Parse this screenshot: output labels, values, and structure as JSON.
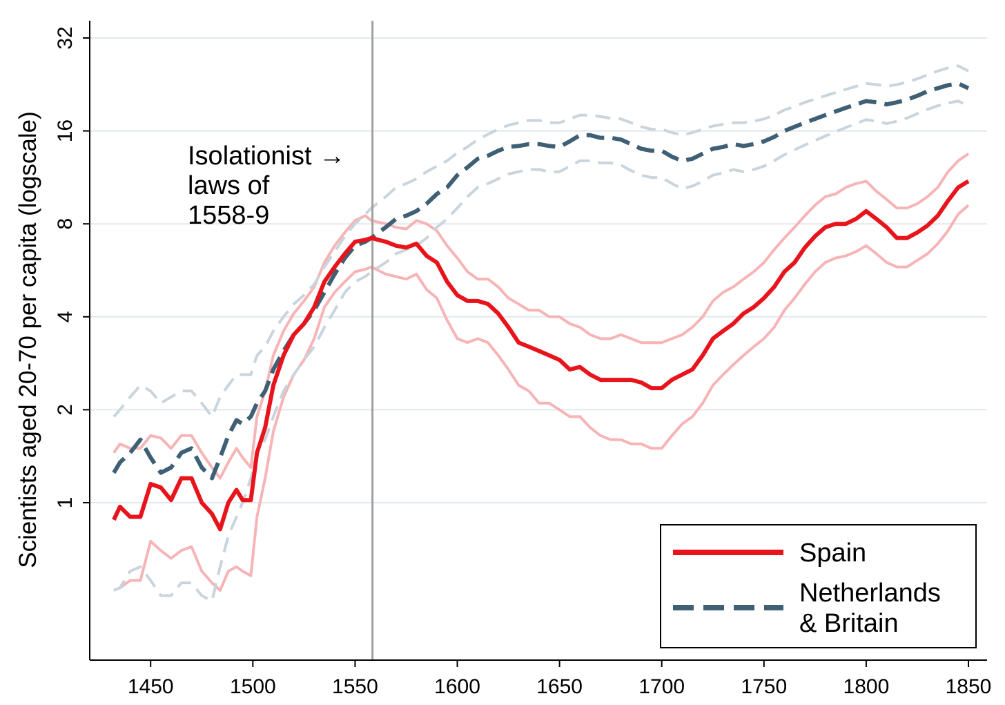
{
  "chart_data": {
    "type": "line",
    "title": "",
    "xlabel": "",
    "ylabel": "Scientists aged 20-70 per capita (logscale)",
    "y_scale": "log2",
    "xlim": [
      1430,
      1856
    ],
    "ylim": [
      0.4,
      40
    ],
    "x_ticks": [
      1450,
      1500,
      1550,
      1600,
      1650,
      1700,
      1750,
      1800,
      1850
    ],
    "x_tick_labels": [
      "1450",
      "1500",
      "1550",
      "1600",
      "1650",
      "1700",
      "1750",
      "1800",
      "1850"
    ],
    "y_ticks": [
      1,
      2,
      4,
      8,
      16,
      32
    ],
    "y_tick_labels": [
      "1",
      "2",
      "4",
      "8",
      "16",
      "32"
    ],
    "grid": "horizontal",
    "legend_position": "bottom-right",
    "vertical_line": {
      "x": 1558.5,
      "color": "#a0a0a0"
    },
    "annotation": {
      "lines": [
        "Isolationist →",
        "laws of",
        "1558-9"
      ]
    },
    "series": [
      {
        "name": "Spain",
        "color": "#e8141b",
        "style": "solid",
        "ci_color": "#f7b4b6",
        "x": [
          1432,
          1435,
          1440,
          1445,
          1450,
          1455,
          1460,
          1465,
          1470,
          1475,
          1480,
          1484,
          1488,
          1492,
          1495,
          1499,
          1502,
          1506,
          1510,
          1515,
          1520,
          1525,
          1530,
          1535,
          1540,
          1545,
          1550,
          1555,
          1558,
          1565,
          1570,
          1575,
          1580,
          1585,
          1590,
          1595,
          1600,
          1605,
          1610,
          1615,
          1620,
          1625,
          1630,
          1635,
          1640,
          1645,
          1650,
          1655,
          1660,
          1665,
          1670,
          1675,
          1680,
          1685,
          1690,
          1695,
          1700,
          1705,
          1710,
          1715,
          1720,
          1725,
          1730,
          1735,
          1740,
          1745,
          1750,
          1755,
          1760,
          1765,
          1770,
          1775,
          1780,
          1785,
          1790,
          1795,
          1800,
          1805,
          1810,
          1815,
          1820,
          1825,
          1830,
          1835,
          1840,
          1845,
          1850
        ],
        "y": [
          0.88,
          0.97,
          0.9,
          0.9,
          1.15,
          1.12,
          1.02,
          1.2,
          1.2,
          1.0,
          0.92,
          0.82,
          1.0,
          1.1,
          1.02,
          1.02,
          1.45,
          1.75,
          2.4,
          3.0,
          3.5,
          3.8,
          4.3,
          5.2,
          5.8,
          6.4,
          7.0,
          7.1,
          7.2,
          7.0,
          6.8,
          6.7,
          6.9,
          6.3,
          6.0,
          5.2,
          4.7,
          4.5,
          4.5,
          4.4,
          4.1,
          3.7,
          3.3,
          3.2,
          3.1,
          3.0,
          2.9,
          2.7,
          2.75,
          2.6,
          2.5,
          2.5,
          2.5,
          2.5,
          2.45,
          2.35,
          2.35,
          2.5,
          2.6,
          2.7,
          3.0,
          3.4,
          3.6,
          3.8,
          4.1,
          4.3,
          4.6,
          5.0,
          5.6,
          6.0,
          6.7,
          7.3,
          7.8,
          8.0,
          8.0,
          8.3,
          8.8,
          8.3,
          7.8,
          7.2,
          7.2,
          7.5,
          7.9,
          8.5,
          9.5,
          10.5,
          11.0
        ],
        "y_upper": [
          1.45,
          1.55,
          1.5,
          1.5,
          1.65,
          1.62,
          1.5,
          1.65,
          1.65,
          1.45,
          1.3,
          1.2,
          1.35,
          1.5,
          1.4,
          1.3,
          1.9,
          2.3,
          3.0,
          3.6,
          4.1,
          4.5,
          5.0,
          6.0,
          6.8,
          7.5,
          8.2,
          8.5,
          8.2,
          8.0,
          7.8,
          7.7,
          8.2,
          8.0,
          7.6,
          6.8,
          6.2,
          5.6,
          5.3,
          5.3,
          5.0,
          4.6,
          4.4,
          4.2,
          4.2,
          4.0,
          4.0,
          3.8,
          3.7,
          3.5,
          3.4,
          3.4,
          3.5,
          3.4,
          3.3,
          3.3,
          3.3,
          3.4,
          3.5,
          3.7,
          4.0,
          4.5,
          4.8,
          5.0,
          5.3,
          5.6,
          6.0,
          6.6,
          7.2,
          7.8,
          8.5,
          9.2,
          9.8,
          10.0,
          10.5,
          10.8,
          11.0,
          10.2,
          9.6,
          9.0,
          9.0,
          9.3,
          9.8,
          10.5,
          11.8,
          12.8,
          13.5
        ],
        "y_lower": [
          0.52,
          0.53,
          0.56,
          0.56,
          0.75,
          0.7,
          0.66,
          0.7,
          0.72,
          0.6,
          0.55,
          0.52,
          0.6,
          0.62,
          0.6,
          0.58,
          0.9,
          1.2,
          1.7,
          2.2,
          2.6,
          2.9,
          3.4,
          4.3,
          4.8,
          5.2,
          5.6,
          5.7,
          5.8,
          5.5,
          5.4,
          5.3,
          5.5,
          4.9,
          4.6,
          3.9,
          3.4,
          3.3,
          3.4,
          3.3,
          3.0,
          2.7,
          2.4,
          2.3,
          2.1,
          2.1,
          2.0,
          1.9,
          1.9,
          1.75,
          1.65,
          1.6,
          1.6,
          1.55,
          1.55,
          1.5,
          1.5,
          1.65,
          1.8,
          1.9,
          2.1,
          2.4,
          2.6,
          2.8,
          3.0,
          3.2,
          3.4,
          3.7,
          4.2,
          4.6,
          5.1,
          5.6,
          6.0,
          6.2,
          6.3,
          6.5,
          6.8,
          6.4,
          6.0,
          5.8,
          5.8,
          6.1,
          6.4,
          6.9,
          7.6,
          8.6,
          9.2
        ]
      },
      {
        "name": "Netherlands & Britain",
        "color": "#3f5f75",
        "style": "dashed",
        "ci_color": "#c9d4dc",
        "x": [
          1432,
          1435,
          1440,
          1445,
          1450,
          1455,
          1460,
          1465,
          1470,
          1475,
          1480,
          1484,
          1488,
          1492,
          1495,
          1499,
          1502,
          1506,
          1510,
          1515,
          1520,
          1525,
          1530,
          1535,
          1540,
          1545,
          1550,
          1555,
          1558,
          1565,
          1570,
          1575,
          1580,
          1585,
          1590,
          1595,
          1600,
          1605,
          1610,
          1615,
          1620,
          1625,
          1630,
          1635,
          1640,
          1645,
          1650,
          1655,
          1660,
          1665,
          1670,
          1675,
          1680,
          1685,
          1690,
          1695,
          1700,
          1705,
          1710,
          1715,
          1720,
          1725,
          1730,
          1735,
          1740,
          1745,
          1750,
          1755,
          1760,
          1765,
          1770,
          1775,
          1780,
          1785,
          1790,
          1795,
          1800,
          1805,
          1810,
          1815,
          1820,
          1825,
          1830,
          1835,
          1840,
          1845,
          1850
        ],
        "y": [
          1.25,
          1.35,
          1.45,
          1.6,
          1.4,
          1.25,
          1.3,
          1.45,
          1.5,
          1.3,
          1.2,
          1.4,
          1.65,
          1.85,
          1.8,
          1.9,
          2.1,
          2.3,
          2.7,
          3.1,
          3.5,
          3.8,
          4.2,
          4.8,
          5.5,
          6.2,
          6.8,
          7.0,
          7.2,
          7.8,
          8.3,
          8.5,
          8.8,
          9.3,
          10.0,
          10.5,
          11.5,
          12.2,
          13.0,
          13.3,
          13.8,
          14.2,
          14.3,
          14.5,
          14.5,
          14.3,
          14.2,
          14.8,
          15.5,
          15.5,
          15.2,
          15.2,
          15.0,
          14.5,
          14.0,
          13.8,
          13.8,
          13.2,
          12.8,
          13.0,
          13.5,
          14.0,
          14.2,
          14.5,
          14.3,
          14.5,
          14.8,
          15.3,
          16.0,
          16.5,
          17.0,
          17.5,
          18.0,
          18.5,
          19.0,
          19.5,
          20.0,
          19.8,
          19.5,
          19.8,
          20.2,
          20.8,
          21.5,
          22.0,
          22.5,
          22.8,
          22.0
        ],
        "y_upper": [
          1.9,
          2.0,
          2.2,
          2.4,
          2.3,
          2.1,
          2.2,
          2.3,
          2.3,
          2.1,
          1.9,
          2.2,
          2.4,
          2.6,
          2.6,
          2.6,
          3.0,
          3.2,
          3.6,
          4.0,
          4.4,
          4.7,
          5.1,
          5.8,
          6.5,
          7.3,
          8.0,
          8.6,
          9.0,
          9.8,
          10.5,
          10.8,
          11.2,
          11.8,
          12.3,
          12.8,
          13.6,
          14.2,
          15.0,
          15.6,
          16.2,
          16.7,
          17.0,
          17.3,
          17.3,
          17.0,
          17.0,
          17.5,
          18.0,
          18.0,
          17.8,
          17.6,
          17.5,
          17.0,
          16.5,
          16.2,
          16.2,
          15.8,
          15.5,
          15.8,
          16.2,
          16.6,
          16.8,
          17.0,
          17.0,
          17.2,
          17.5,
          18.0,
          18.7,
          19.2,
          19.8,
          20.3,
          20.8,
          21.3,
          21.8,
          22.3,
          22.8,
          22.6,
          22.3,
          22.6,
          23.0,
          23.6,
          24.3,
          25.0,
          25.6,
          26.0,
          25.0
        ],
        "y_lower": [
          0.52,
          0.53,
          0.6,
          0.62,
          0.56,
          0.5,
          0.5,
          0.55,
          0.55,
          0.5,
          0.48,
          0.62,
          0.78,
          0.9,
          1.0,
          1.2,
          1.45,
          1.6,
          1.9,
          2.3,
          2.6,
          2.9,
          3.2,
          3.7,
          4.2,
          4.8,
          5.2,
          5.4,
          5.6,
          6.0,
          6.4,
          6.6,
          6.8,
          7.2,
          7.8,
          8.3,
          9.0,
          9.8,
          10.5,
          10.8,
          11.2,
          11.6,
          11.8,
          12.0,
          12.0,
          11.8,
          11.8,
          12.3,
          12.8,
          12.8,
          12.6,
          12.6,
          12.4,
          11.9,
          11.5,
          11.3,
          11.3,
          10.8,
          10.4,
          10.6,
          11.0,
          11.5,
          11.7,
          12.0,
          11.8,
          12.0,
          12.3,
          12.8,
          13.4,
          13.9,
          14.4,
          14.9,
          15.4,
          15.9,
          16.4,
          16.9,
          17.4,
          17.2,
          16.9,
          17.2,
          17.6,
          18.2,
          18.8,
          19.3,
          19.7,
          20.0,
          19.3
        ]
      }
    ]
  }
}
